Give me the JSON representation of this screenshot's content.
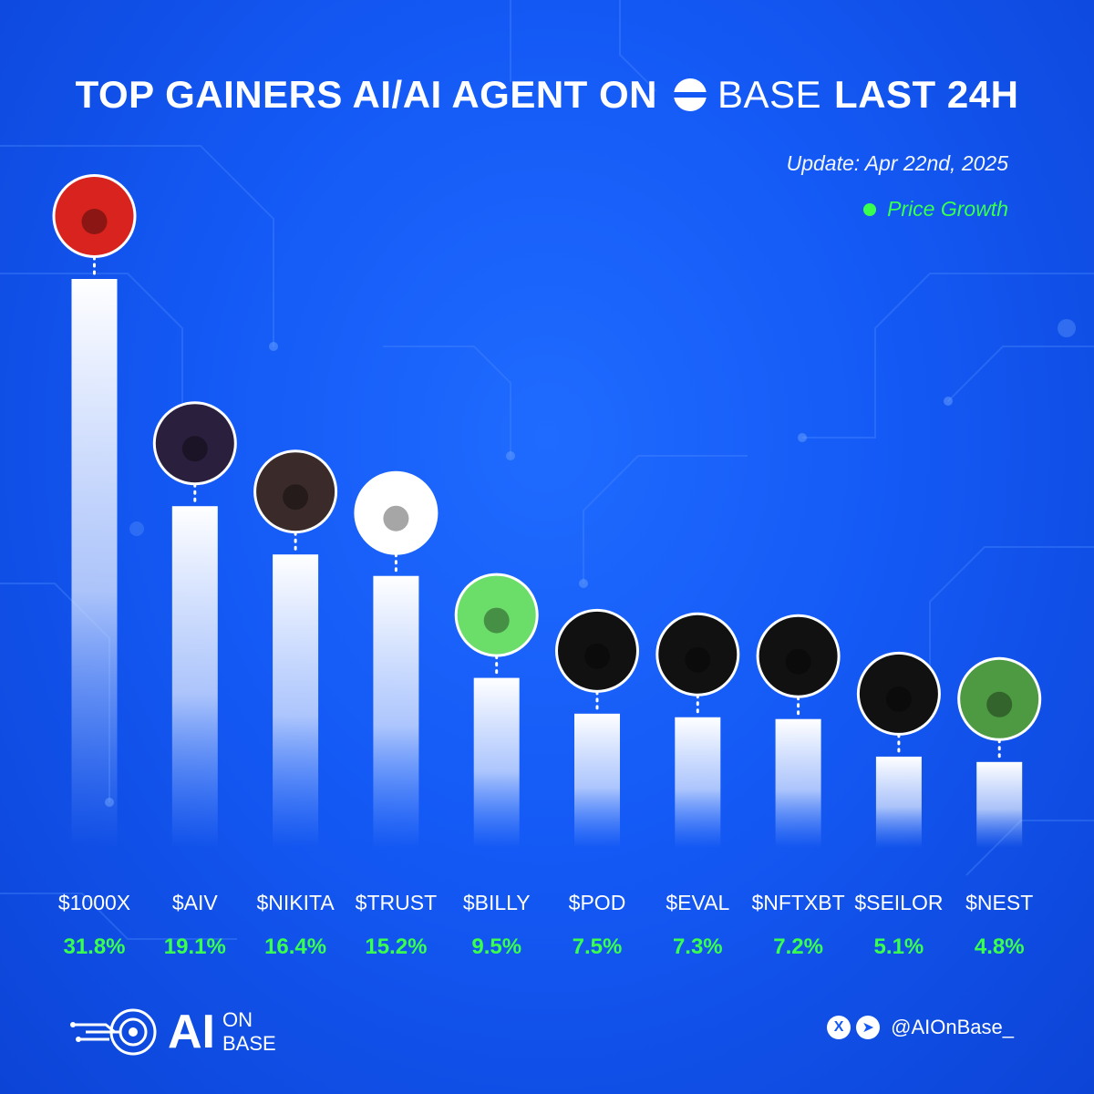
{
  "header": {
    "title_prefix": "TOP GAINERS AI/AI AGENT ON",
    "base_word": "BASE",
    "title_suffix": "LAST 24H",
    "update": "Update: Apr 22nd, 2025",
    "legend_label": "Price Growth"
  },
  "footer": {
    "logo_ai": "AI",
    "logo_on": "ON",
    "logo_base": "BASE",
    "x_glyph": "X",
    "tg_glyph": "➤",
    "handle": "@AIOnBase_"
  },
  "colors": {
    "background": "#1459f5",
    "growth_green": "#39ff4f",
    "bar_top": "#ffffff"
  },
  "chart_data": {
    "type": "bar",
    "title": "",
    "xlabel": "",
    "ylabel": "",
    "ylim": [
      0,
      35
    ],
    "grid": false,
    "legend_position": "top-right",
    "categories": [
      "$1000X",
      "$AIV",
      "$NIKITA",
      "$TRUST",
      "$BILLY",
      "$POD",
      "$EVAL",
      "$NFTXBT",
      "$SEILOR",
      "$NEST"
    ],
    "values": [
      31.8,
      19.1,
      16.4,
      15.2,
      9.5,
      7.5,
      7.3,
      7.2,
      5.1,
      4.8
    ],
    "value_labels": [
      "31.8%",
      "19.1%",
      "16.4%",
      "15.2%",
      "9.5%",
      "7.5%",
      "7.3%",
      "7.2%",
      "5.1%",
      "4.8%"
    ],
    "series": [
      {
        "name": "Price Growth",
        "values": [
          31.8,
          19.1,
          16.4,
          15.2,
          9.5,
          7.5,
          7.3,
          7.2,
          5.1,
          4.8
        ]
      }
    ],
    "avatar_colors": [
      "#d8231e",
      "#2a1f3d",
      "#3a2a2a",
      "#ffffff",
      "#6bde6a",
      "#111111",
      "#111111",
      "#111111",
      "#111111",
      "#4d9a43"
    ]
  }
}
